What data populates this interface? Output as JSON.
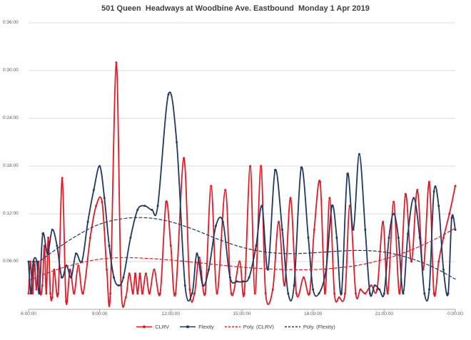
{
  "chart_data": {
    "type": "line",
    "title": "501 Queen  Headways at Woodbine Ave. Eastbound  Monday 1 Apr 2019",
    "x_axis": {
      "ticks": [
        "6:00:00",
        "9:00:00",
        "12:00:00",
        "15:00:00",
        "18:00:00",
        "21:00:00",
        "0:00:00"
      ],
      "tick_hours": [
        6,
        9,
        12,
        15,
        18,
        21,
        24
      ],
      "range_hours": [
        6,
        24
      ]
    },
    "y_axis": {
      "ticks": [
        "0:06:00",
        "0:12:00",
        "0:18:00",
        "0:24:00",
        "0:30:00",
        "0:36:00"
      ],
      "tick_minutes": [
        6,
        12,
        18,
        24,
        30,
        36
      ],
      "grid_minutes": [
        0,
        6,
        12,
        18,
        24,
        30,
        36
      ],
      "range_minutes": [
        0,
        36
      ],
      "unit": "h:mm:ss headway"
    },
    "grid": "horizontal",
    "legend": {
      "position": "bottom",
      "entries": [
        "CLRV",
        "Flexity",
        "Poly. (CLRV)",
        "Poly. (Flexity)"
      ]
    },
    "colors": {
      "clrv": "#e01b24",
      "flexity": "#1f3864",
      "grid": "#d9d9d9",
      "axis": "#a6a6a6",
      "text": "#595959",
      "title": "#3f3f3f"
    },
    "series": [
      {
        "name": "CLRV",
        "color_key": "clrv",
        "style": "solid",
        "markers": true,
        "points": [
          [
            6.0,
            2
          ],
          [
            6.08,
            6
          ],
          [
            6.17,
            2
          ],
          [
            6.25,
            6
          ],
          [
            6.33,
            2.5
          ],
          [
            6.42,
            6
          ],
          [
            6.5,
            2
          ],
          [
            6.58,
            3
          ],
          [
            6.67,
            8
          ],
          [
            6.75,
            2
          ],
          [
            6.83,
            9
          ],
          [
            6.92,
            2
          ],
          [
            7.0,
            1.5
          ],
          [
            7.08,
            5
          ],
          [
            7.25,
            2
          ],
          [
            7.42,
            16.5
          ],
          [
            7.58,
            1
          ],
          [
            7.75,
            5
          ],
          [
            7.92,
            2
          ],
          [
            8.1,
            5.5
          ],
          [
            8.3,
            2
          ],
          [
            8.6,
            9
          ],
          [
            8.85,
            13
          ],
          [
            9.1,
            13.5
          ],
          [
            9.3,
            5
          ],
          [
            9.45,
            2
          ],
          [
            9.7,
            31
          ],
          [
            9.9,
            3
          ],
          [
            10.1,
            1.5
          ],
          [
            10.25,
            4.5
          ],
          [
            10.4,
            2
          ],
          [
            10.5,
            4.5
          ],
          [
            10.6,
            2
          ],
          [
            10.7,
            4.5
          ],
          [
            10.8,
            2
          ],
          [
            10.95,
            4.5
          ],
          [
            11.1,
            2
          ],
          [
            11.3,
            5
          ],
          [
            11.55,
            2
          ],
          [
            11.8,
            13.5
          ],
          [
            12.0,
            8
          ],
          [
            12.2,
            2
          ],
          [
            12.55,
            19
          ],
          [
            12.8,
            2.5
          ],
          [
            13.0,
            2
          ],
          [
            13.2,
            6.5
          ],
          [
            13.45,
            2
          ],
          [
            13.7,
            15.5
          ],
          [
            13.95,
            2
          ],
          [
            14.3,
            15
          ],
          [
            14.55,
            2
          ],
          [
            14.9,
            6
          ],
          [
            15.1,
            2
          ],
          [
            15.35,
            18
          ],
          [
            15.55,
            2
          ],
          [
            15.8,
            18
          ],
          [
            16.0,
            2
          ],
          [
            16.3,
            2.5
          ],
          [
            16.55,
            11
          ],
          [
            16.8,
            3
          ],
          [
            17.05,
            14
          ],
          [
            17.3,
            2
          ],
          [
            17.6,
            4
          ],
          [
            17.85,
            2
          ],
          [
            18.05,
            10
          ],
          [
            18.3,
            16
          ],
          [
            18.5,
            2
          ],
          [
            18.7,
            14
          ],
          [
            18.9,
            2
          ],
          [
            19.1,
            1.5
          ],
          [
            19.35,
            2
          ],
          [
            19.55,
            13
          ],
          [
            19.8,
            2
          ],
          [
            20.0,
            2.5
          ],
          [
            20.2,
            2
          ],
          [
            20.45,
            3
          ],
          [
            20.7,
            2.5
          ],
          [
            20.95,
            11
          ],
          [
            21.15,
            2
          ],
          [
            21.4,
            13.5
          ],
          [
            21.65,
            2
          ],
          [
            21.9,
            14.5
          ],
          [
            22.15,
            6
          ],
          [
            22.4,
            15
          ],
          [
            22.65,
            5
          ],
          [
            22.9,
            16
          ],
          [
            23.1,
            2
          ],
          [
            23.3,
            6
          ],
          [
            23.5,
            9
          ],
          [
            23.75,
            12
          ],
          [
            24.0,
            15.5
          ]
        ]
      },
      {
        "name": "Flexity",
        "color_key": "flexity",
        "style": "solid",
        "markers": true,
        "points": [
          [
            6.0,
            6
          ],
          [
            6.1,
            2
          ],
          [
            6.2,
            6
          ],
          [
            6.35,
            6
          ],
          [
            6.45,
            2
          ],
          [
            6.6,
            9.5
          ],
          [
            6.8,
            7
          ],
          [
            7.0,
            10
          ],
          [
            7.2,
            8
          ],
          [
            7.4,
            4
          ],
          [
            7.6,
            5.5
          ],
          [
            7.8,
            4
          ],
          [
            8.0,
            7
          ],
          [
            8.25,
            6
          ],
          [
            8.5,
            11
          ],
          [
            8.75,
            15
          ],
          [
            9.0,
            18
          ],
          [
            9.2,
            14
          ],
          [
            9.4,
            8
          ],
          [
            9.6,
            4
          ],
          [
            9.8,
            3
          ],
          [
            10.0,
            4
          ],
          [
            10.3,
            9
          ],
          [
            10.6,
            12.5
          ],
          [
            10.9,
            13
          ],
          [
            11.2,
            12.5
          ],
          [
            11.45,
            13
          ],
          [
            11.9,
            27
          ],
          [
            12.25,
            21
          ],
          [
            12.6,
            3
          ],
          [
            12.9,
            2
          ],
          [
            13.1,
            7
          ],
          [
            13.35,
            3
          ],
          [
            13.6,
            5
          ],
          [
            13.9,
            10.5
          ],
          [
            14.2,
            11
          ],
          [
            14.5,
            4
          ],
          [
            14.8,
            3.5
          ],
          [
            15.05,
            3.5
          ],
          [
            15.3,
            4
          ],
          [
            15.6,
            8
          ],
          [
            15.85,
            13
          ],
          [
            16.1,
            5
          ],
          [
            16.4,
            17.5
          ],
          [
            16.7,
            10
          ],
          [
            16.95,
            2
          ],
          [
            17.2,
            3
          ],
          [
            17.5,
            17.8
          ],
          [
            17.8,
            9
          ],
          [
            18.0,
            2.5
          ],
          [
            18.25,
            2
          ],
          [
            18.55,
            5
          ],
          [
            18.8,
            13
          ],
          [
            19.0,
            9
          ],
          [
            19.2,
            2
          ],
          [
            19.45,
            17
          ],
          [
            19.7,
            10
          ],
          [
            19.95,
            19.5
          ],
          [
            20.2,
            10
          ],
          [
            20.4,
            2
          ],
          [
            20.6,
            3
          ],
          [
            20.8,
            2.5
          ],
          [
            21.0,
            2
          ],
          [
            21.2,
            9
          ],
          [
            21.4,
            12
          ],
          [
            21.6,
            9
          ],
          [
            21.8,
            2
          ],
          [
            22.0,
            9.5
          ],
          [
            22.25,
            14
          ],
          [
            22.5,
            9
          ],
          [
            22.7,
            2
          ],
          [
            22.9,
            2.5
          ],
          [
            23.1,
            14.8
          ],
          [
            23.3,
            13
          ],
          [
            23.5,
            5
          ],
          [
            23.7,
            2
          ],
          [
            23.85,
            11.5
          ],
          [
            24.0,
            10
          ]
        ]
      },
      {
        "name": "Poly. (CLRV)",
        "color_key": "clrv",
        "style": "dashed",
        "markers": false,
        "points": [
          [
            6,
            3.6
          ],
          [
            7,
            4.8
          ],
          [
            8,
            5.7
          ],
          [
            9,
            6.3
          ],
          [
            10,
            6.5
          ],
          [
            11,
            6.4
          ],
          [
            12,
            6.2
          ],
          [
            13,
            5.9
          ],
          [
            14,
            5.6
          ],
          [
            15,
            5.3
          ],
          [
            16,
            5.1
          ],
          [
            17,
            5.0
          ],
          [
            18,
            5.0
          ],
          [
            19,
            5.2
          ],
          [
            20,
            5.6
          ],
          [
            21,
            6.3
          ],
          [
            22,
            7.3
          ],
          [
            23,
            8.6
          ],
          [
            24,
            10.2
          ]
        ]
      },
      {
        "name": "Poly. (Flexity)",
        "color_key": "flexity",
        "style": "dashed",
        "markers": false,
        "points": [
          [
            6,
            5.0
          ],
          [
            7,
            7.2
          ],
          [
            8,
            9.2
          ],
          [
            9,
            10.7
          ],
          [
            10,
            11.4
          ],
          [
            11,
            11.5
          ],
          [
            12,
            11.0
          ],
          [
            13,
            10.0
          ],
          [
            14,
            8.8
          ],
          [
            15,
            7.8
          ],
          [
            16,
            7.2
          ],
          [
            17,
            7.0
          ],
          [
            18,
            7.1
          ],
          [
            19,
            7.3
          ],
          [
            20,
            7.4
          ],
          [
            21,
            7.2
          ],
          [
            22,
            6.5
          ],
          [
            23,
            5.4
          ],
          [
            24,
            3.8
          ]
        ]
      }
    ]
  }
}
